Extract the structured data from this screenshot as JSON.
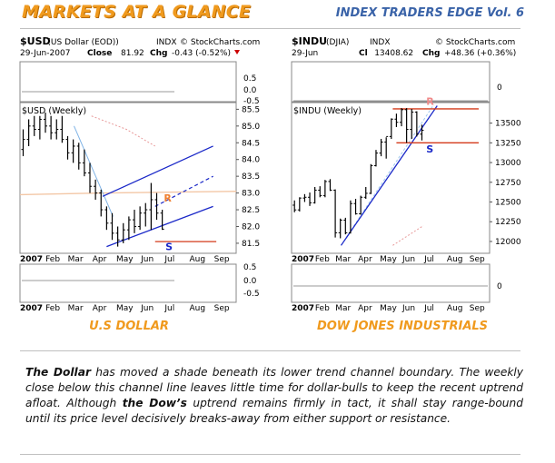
{
  "header": {
    "title": "MARKETS AT A GLANCE",
    "subtitle": "INDEX TRADERS EDGE Vol. 6"
  },
  "chart_data": [
    {
      "type": "line",
      "symbol": "$USD",
      "name": "(US Dollar (EOD))",
      "exchange": "INDX",
      "source": "© StockCharts.com",
      "date": "29-Jun-2007",
      "close_label": "Close",
      "close": "81.92",
      "chg_label": "Chg",
      "chg": "-0.43 (-0.52%)",
      "panel_label": "$USD (Weekly)",
      "caption": "U.S DOLLAR",
      "year_label": "2007",
      "x_ticks": [
        "Feb",
        "Mar",
        "Apr",
        "May",
        "Jun",
        "Jul",
        "Aug",
        "Sep"
      ],
      "y_ticks": [
        "85.5",
        "85.0",
        "84.5",
        "84.0",
        "83.5",
        "83.0",
        "82.5",
        "82.0",
        "81.5"
      ],
      "ylim": [
        81.2,
        85.7
      ],
      "top_ticks": [
        "0.5",
        "0.0",
        "-0.5"
      ],
      "bottom_ticks": [
        "0.5",
        "0.0",
        "-0.5"
      ],
      "weeks": [
        [
          "2007-01-05",
          84.3,
          84.9,
          84.1,
          84.6
        ],
        [
          "2007-01-12",
          84.6,
          85.2,
          84.4,
          85.0
        ],
        [
          "2007-01-19",
          85.0,
          85.3,
          84.7,
          84.9
        ],
        [
          "2007-01-26",
          84.9,
          85.3,
          84.6,
          85.2
        ],
        [
          "2007-02-02",
          85.2,
          85.4,
          84.8,
          85.0
        ],
        [
          "2007-02-09",
          85.0,
          85.3,
          84.6,
          84.8
        ],
        [
          "2007-02-16",
          84.8,
          85.2,
          84.6,
          84.9
        ],
        [
          "2007-02-23",
          84.9,
          85.3,
          84.5,
          84.6
        ],
        [
          "2007-03-02",
          84.6,
          84.7,
          84.0,
          84.2
        ],
        [
          "2007-03-09",
          84.2,
          84.6,
          83.9,
          84.4
        ],
        [
          "2007-03-16",
          84.4,
          84.5,
          83.7,
          83.9
        ],
        [
          "2007-03-23",
          83.9,
          84.3,
          83.5,
          83.6
        ],
        [
          "2007-03-30",
          83.6,
          83.9,
          83.0,
          83.2
        ],
        [
          "2007-04-06",
          83.2,
          83.4,
          82.8,
          83.0
        ],
        [
          "2007-04-13",
          83.0,
          83.1,
          82.3,
          82.5
        ],
        [
          "2007-04-20",
          82.5,
          82.6,
          81.9,
          82.1
        ],
        [
          "2007-04-27",
          82.1,
          82.4,
          81.6,
          81.8
        ],
        [
          "2007-05-04",
          81.8,
          82.0,
          81.4,
          81.6
        ],
        [
          "2007-05-11",
          81.6,
          82.1,
          81.5,
          81.9
        ],
        [
          "2007-05-18",
          81.9,
          82.3,
          81.6,
          82.2
        ],
        [
          "2007-05-25",
          82.2,
          82.5,
          81.8,
          82.0
        ],
        [
          "2007-06-01",
          82.0,
          82.6,
          81.9,
          82.4
        ],
        [
          "2007-06-08",
          82.4,
          82.7,
          82.0,
          82.5
        ],
        [
          "2007-06-15",
          82.5,
          83.3,
          81.9,
          82.8
        ],
        [
          "2007-06-22",
          82.8,
          83.0,
          82.2,
          82.4
        ],
        [
          "2007-06-29",
          82.4,
          82.5,
          81.9,
          81.92
        ]
      ],
      "annotations": {
        "R": "R",
        "S": "S",
        "support": 81.55
      }
    },
    {
      "type": "line",
      "symbol": "$INDU",
      "name": "(DJIA)",
      "exchange": "INDX",
      "source": "© StockCharts.com",
      "date": "29-Jun",
      "close_label": "Cl",
      "close": "13408.62",
      "chg_label": "Chg",
      "chg": "+48.36 (+0.36%)",
      "panel_label": "$INDU (Weekly)",
      "caption": "DOW JONES INDUSTRIALS",
      "year_label": "2007",
      "x_ticks": [
        "Feb",
        "Mar",
        "Apr",
        "May",
        "Jun",
        "Jul",
        "Aug",
        "Sep"
      ],
      "y_ticks": [
        "13500",
        "13250",
        "13000",
        "12750",
        "12500",
        "12250",
        "12000"
      ],
      "ylim": [
        11850,
        13760
      ],
      "top_ticks": [
        "0"
      ],
      "bottom_ticks": [
        "0"
      ],
      "weeks": [
        [
          "2007-01-05",
          12460,
          12520,
          12370,
          12400
        ],
        [
          "2007-01-12",
          12400,
          12560,
          12380,
          12550
        ],
        [
          "2007-01-19",
          12550,
          12600,
          12500,
          12560
        ],
        [
          "2007-01-26",
          12560,
          12620,
          12450,
          12490
        ],
        [
          "2007-02-02",
          12490,
          12690,
          12480,
          12650
        ],
        [
          "2007-02-09",
          12650,
          12700,
          12560,
          12580
        ],
        [
          "2007-02-16",
          12580,
          12780,
          12560,
          12760
        ],
        [
          "2007-02-23",
          12760,
          12790,
          12640,
          12650
        ],
        [
          "2007-03-02",
          12650,
          12660,
          12050,
          12110
        ],
        [
          "2007-03-09",
          12110,
          12290,
          12040,
          12270
        ],
        [
          "2007-03-16",
          12270,
          12300,
          12090,
          12110
        ],
        [
          "2007-03-23",
          12110,
          12520,
          12100,
          12480
        ],
        [
          "2007-03-30",
          12480,
          12540,
          12340,
          12350
        ],
        [
          "2007-04-06",
          12350,
          12580,
          12340,
          12560
        ],
        [
          "2007-04-13",
          12560,
          12690,
          12540,
          12610
        ],
        [
          "2007-04-20",
          12610,
          12980,
          12600,
          12960
        ],
        [
          "2007-04-27",
          12960,
          13160,
          12950,
          13120
        ],
        [
          "2007-05-04",
          13120,
          13300,
          13080,
          13260
        ],
        [
          "2007-05-11",
          13260,
          13320,
          13050,
          13330
        ],
        [
          "2007-05-18",
          13330,
          13560,
          13300,
          13550
        ],
        [
          "2007-05-25",
          13550,
          13620,
          13450,
          13510
        ],
        [
          "2007-06-01",
          13510,
          13690,
          13460,
          13670
        ],
        [
          "2007-06-08",
          13670,
          13690,
          13250,
          13420
        ],
        [
          "2007-06-15",
          13420,
          13680,
          13300,
          13640
        ],
        [
          "2007-06-22",
          13640,
          13650,
          13330,
          13360
        ],
        [
          "2007-06-29",
          13360,
          13480,
          13280,
          13408.62
        ]
      ],
      "annotations": {
        "R": "R",
        "S": "S",
        "resistance": 13680,
        "support": 13250
      }
    }
  ],
  "body": {
    "t1": "The Dollar",
    "t2": " has moved a shade beneath its lower trend channel boundary.  The weekly close below this channel line leaves little time for dollar-bulls to keep the recent uptrend afloat. Although ",
    "t3": "the Dow’s",
    "t4": " uptrend remains firmly in tact, it shall stay range-bound until its price level decisively breaks-away from either support or resistance."
  }
}
